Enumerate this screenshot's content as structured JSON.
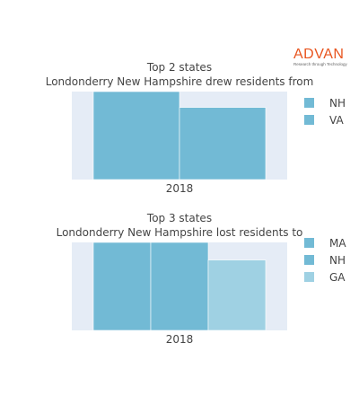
{
  "logo": {
    "wordmark": "ADVAN",
    "tagline": "Research through Technology"
  },
  "colors": {
    "plot_bg": "#e5ecf6",
    "series_primary": "#72bad5",
    "series_secondary": "#9fd1e3"
  },
  "chart_data": [
    {
      "type": "bar",
      "barmode": "group",
      "title": "Top 2 states",
      "subtitle": "Londonderry New Hampshire drew residents from",
      "categories": [
        "2018"
      ],
      "series": [
        {
          "name": "NH",
          "values": [
            100
          ],
          "color": "#72bad5"
        },
        {
          "name": "VA",
          "values": [
            82
          ],
          "color": "#72bad5"
        }
      ],
      "ylim": [
        0,
        100
      ],
      "grid": false,
      "legend_position": "right"
    },
    {
      "type": "bar",
      "barmode": "group",
      "title": "Top 3 states",
      "subtitle": "Londonderry New Hampshire lost residents to",
      "categories": [
        "2018"
      ],
      "series": [
        {
          "name": "MA",
          "values": [
            100
          ],
          "color": "#72bad5"
        },
        {
          "name": "NH",
          "values": [
            100
          ],
          "color": "#72bad5"
        },
        {
          "name": "GA",
          "values": [
            80
          ],
          "color": "#9fd1e3"
        }
      ],
      "ylim": [
        0,
        100
      ],
      "grid": false,
      "legend_position": "right"
    }
  ]
}
